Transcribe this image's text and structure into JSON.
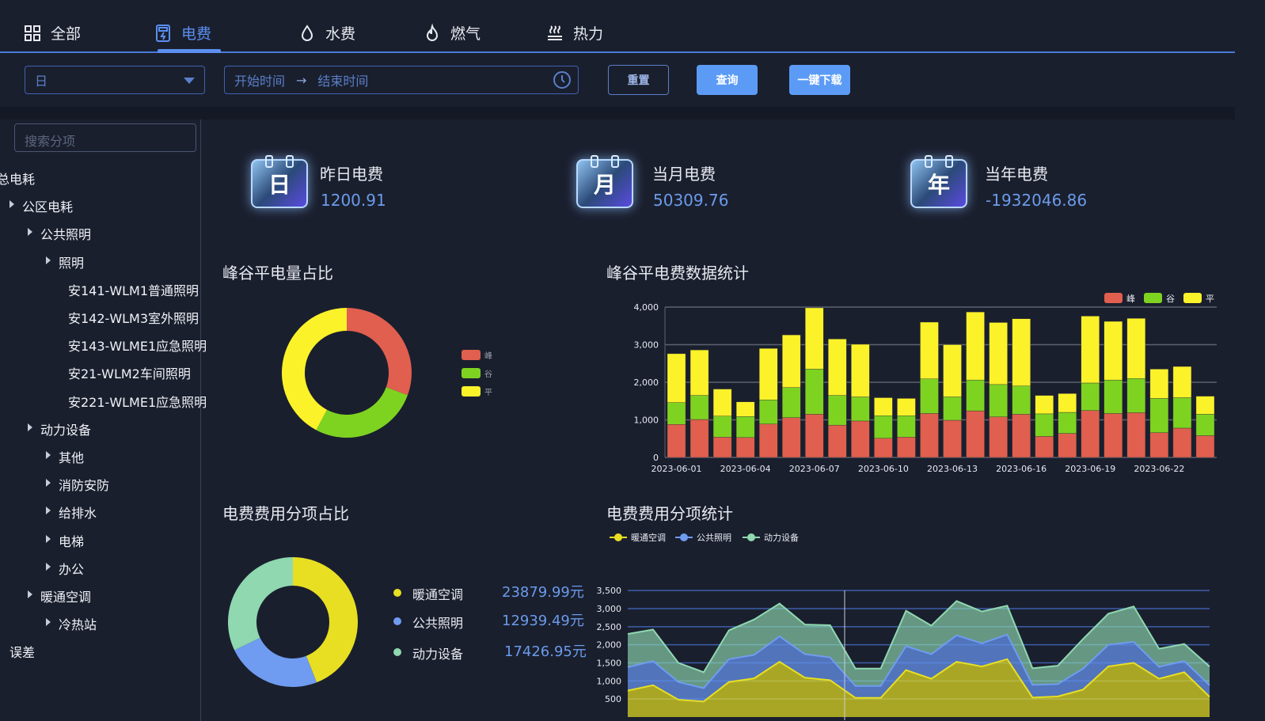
{
  "tabs": [
    {
      "label": "全部",
      "icon": "grid-icon",
      "active": false
    },
    {
      "label": "电费",
      "icon": "electric-meter-icon",
      "active": true
    },
    {
      "label": "水费",
      "icon": "water-drop-icon",
      "active": false
    },
    {
      "label": "燃气",
      "icon": "flame-icon",
      "active": false
    },
    {
      "label": "热力",
      "icon": "heat-icon",
      "active": false
    }
  ],
  "filters": {
    "period": "日",
    "start_placeholder": "开始时间",
    "arrow": "→",
    "end_placeholder": "结束时间",
    "reset": "重置",
    "query": "查询",
    "download": "一键下载"
  },
  "sidebar": {
    "search_placeholder": "搜索分项",
    "items": [
      {
        "label": "总电耗",
        "level": 0,
        "caret": false
      },
      {
        "label": "公区电耗",
        "level": 1,
        "caret": true
      },
      {
        "label": "公共照明",
        "level": 2,
        "caret": true
      },
      {
        "label": "照明",
        "level": 3,
        "caret": true
      },
      {
        "label": "安141-WLM1普通照明",
        "level": 4,
        "caret": false
      },
      {
        "label": "安142-WLM3室外照明",
        "level": 4,
        "caret": false
      },
      {
        "label": "安143-WLME1应急照明",
        "level": 4,
        "caret": false
      },
      {
        "label": "安21-WLM2车间照明",
        "level": 4,
        "caret": false
      },
      {
        "label": "安221-WLME1应急照明",
        "level": 4,
        "caret": false
      },
      {
        "label": "动力设备",
        "level": 2,
        "caret": true
      },
      {
        "label": "其他",
        "level": 3,
        "caret": true
      },
      {
        "label": "消防安防",
        "level": 3,
        "caret": true
      },
      {
        "label": "给排水",
        "level": 3,
        "caret": true
      },
      {
        "label": "电梯",
        "level": 3,
        "caret": true
      },
      {
        "label": "办公",
        "level": 3,
        "caret": true
      },
      {
        "label": "暖通空调",
        "level": 2,
        "caret": true
      },
      {
        "label": "冷热站",
        "level": 3,
        "caret": true
      },
      {
        "label": "误差",
        "level": 0,
        "caret": false
      }
    ]
  },
  "kpis": [
    {
      "icon_text": "日",
      "title": "昨日电费",
      "value": "1200.91"
    },
    {
      "icon_text": "月",
      "title": "当月电费",
      "value": "50309.76"
    },
    {
      "icon_text": "年",
      "title": "当年电费",
      "value": "-1932046.86"
    }
  ],
  "colors": {
    "peak": "#e05f4e",
    "valley": "#7ed321",
    "flat": "#fbf22a",
    "hvac": "#e8df22",
    "lighting": "#6f9cf0",
    "power": "#8fd8b0",
    "accent": "#5b8ff0"
  },
  "chart_data": [
    {
      "type": "pie",
      "title": "峰谷平电量占比",
      "donut": true,
      "labels": [
        "峰",
        "谷",
        "平"
      ],
      "values": [
        30.6,
        27.2,
        42.2
      ],
      "legend": "right"
    },
    {
      "type": "bar",
      "title": "峰谷平电费数据统计",
      "stacked": true,
      "legend": "top-right",
      "grid": true,
      "categories": [
        "2023-06-01",
        "2023-06-02",
        "2023-06-03",
        "2023-06-04",
        "2023-06-05",
        "2023-06-06",
        "2023-06-07",
        "2023-06-08",
        "2023-06-09",
        "2023-06-10",
        "2023-06-11",
        "2023-06-12",
        "2023-06-13",
        "2023-06-14",
        "2023-06-15",
        "2023-06-16",
        "2023-06-17",
        "2023-06-18",
        "2023-06-19",
        "2023-06-20",
        "2023-06-21",
        "2023-06-22",
        "2023-06-23",
        "2023-06-24"
      ],
      "xticks": [
        "2023-06-01",
        "2023-06-04",
        "2023-06-07",
        "2023-06-10",
        "2023-06-13",
        "2023-06-16",
        "2023-06-19",
        "2023-06-22"
      ],
      "yticks": [
        "0",
        "1,000",
        "2,000",
        "3,000",
        "4,000"
      ],
      "ylim": [
        0,
        4000
      ],
      "series": [
        {
          "name": "峰",
          "values": [
            880,
            1010,
            540,
            530,
            890,
            1060,
            1150,
            860,
            970,
            510,
            540,
            1170,
            990,
            1240,
            1080,
            1150,
            560,
            640,
            1250,
            1170,
            1190,
            660,
            780,
            580
          ]
        },
        {
          "name": "谷",
          "values": [
            580,
            640,
            560,
            560,
            640,
            800,
            1200,
            790,
            640,
            600,
            570,
            920,
            620,
            820,
            860,
            750,
            600,
            560,
            730,
            890,
            910,
            910,
            810,
            570
          ]
        },
        {
          "name": "平",
          "values": [
            1300,
            1210,
            720,
            390,
            1370,
            1400,
            1630,
            1500,
            1400,
            480,
            460,
            1510,
            1390,
            1810,
            1650,
            1790,
            490,
            500,
            1780,
            1560,
            1600,
            780,
            830,
            480
          ]
        }
      ]
    },
    {
      "type": "pie",
      "title": "电费费用分项占比",
      "donut": true,
      "labels": [
        "暖通空调",
        "公共照明",
        "动力设备"
      ],
      "values": [
        23879.99,
        12939.49,
        17426.95
      ],
      "value_labels": [
        "23879.99元",
        "12939.49元",
        "17426.95元"
      ],
      "legend": "right"
    },
    {
      "type": "area",
      "title": "电费费用分项统计",
      "stacked": true,
      "legend": "top-left",
      "grid": true,
      "yticks": [
        "500",
        "1,000",
        "1,500",
        "2,000",
        "2,500",
        "3,000",
        "3,500"
      ],
      "ylim": [
        0,
        3500
      ],
      "series": [
        {
          "name": "暖通空调",
          "values": [
            730,
            880,
            480,
            430,
            970,
            1070,
            1530,
            1090,
            1020,
            530,
            530,
            1300,
            1060,
            1530,
            1400,
            1600,
            540,
            570,
            760,
            1400,
            1500,
            1060,
            1240,
            560
          ]
        },
        {
          "name": "公共照明",
          "values": [
            650,
            670,
            490,
            370,
            630,
            650,
            700,
            650,
            630,
            330,
            330,
            660,
            680,
            730,
            640,
            680,
            350,
            340,
            580,
            600,
            580,
            330,
            310,
            320
          ]
        },
        {
          "name": "动力设备",
          "values": [
            920,
            870,
            530,
            440,
            800,
            980,
            910,
            820,
            890,
            480,
            480,
            980,
            790,
            950,
            880,
            800,
            460,
            510,
            820,
            860,
            980,
            500,
            470,
            520
          ]
        }
      ]
    }
  ]
}
